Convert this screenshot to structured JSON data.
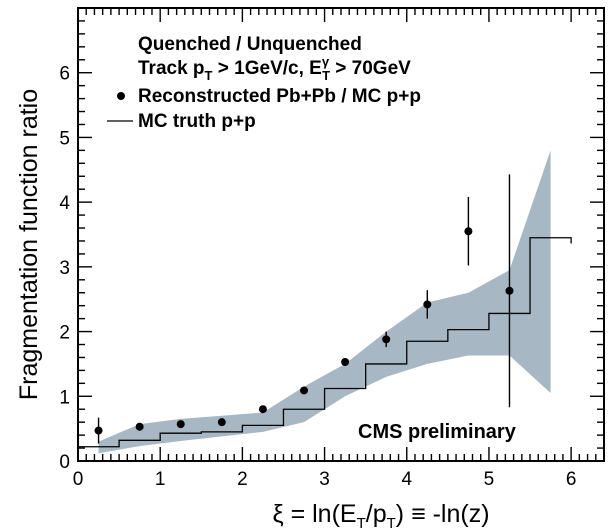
{
  "chart_data": {
    "type": "scatter",
    "title": "",
    "xlabel": "ξ = ln(E_T/p_T) ≡ -ln(z)",
    "ylabel": "Fragmentation function ratio",
    "xlim": [
      0,
      6.4
    ],
    "ylim": [
      0,
      7
    ],
    "x_ticks": [
      "0",
      "1",
      "2",
      "3",
      "4",
      "5",
      "6"
    ],
    "y_ticks": [
      "0",
      "1",
      "2",
      "3",
      "4",
      "5",
      "6"
    ],
    "legend": {
      "header1": "Quenched / Unquenched",
      "header2": "Track p_T > 1GeV/c, E^γ_T > 70GeV",
      "entries": [
        "Reconstructed Pb+Pb / MC p+p",
        "MC truth p+p"
      ]
    },
    "annotation": "CMS preliminary",
    "colors": {
      "band": "#a7b8c4",
      "markers": "#000000"
    },
    "series": [
      {
        "name": "Reconstructed Pb+Pb / MC p+p",
        "x": [
          0.25,
          0.75,
          1.25,
          1.75,
          2.25,
          2.75,
          3.25,
          3.75,
          4.25,
          4.75,
          5.25
        ],
        "y": [
          0.47,
          0.53,
          0.57,
          0.6,
          0.8,
          1.09,
          1.53,
          1.88,
          2.42,
          3.55,
          2.63
        ],
        "y_err": [
          0.2,
          0.06,
          0.05,
          0.04,
          0.05,
          0.05,
          0.06,
          0.12,
          0.22,
          0.53,
          1.8
        ]
      },
      {
        "name": "MC truth p+p",
        "x_edges": [
          0,
          0.5,
          1.0,
          1.5,
          2.0,
          2.5,
          3.0,
          3.5,
          4.0,
          4.5,
          5.0,
          5.5,
          6.0
        ],
        "y": [
          0.22,
          0.32,
          0.43,
          0.45,
          0.55,
          0.8,
          1.12,
          1.5,
          1.85,
          2.03,
          2.28,
          3.45,
          3.36
        ]
      },
      {
        "name": "systematic band",
        "x": [
          0.25,
          0.75,
          1.25,
          1.75,
          2.25,
          2.75,
          3.25,
          3.75,
          4.25,
          4.75,
          5.25,
          5.75
        ],
        "y_low": [
          0.12,
          0.23,
          0.31,
          0.38,
          0.45,
          0.6,
          1.0,
          1.3,
          1.5,
          1.63,
          1.63,
          1.05
        ],
        "y_high": [
          0.3,
          0.57,
          0.65,
          0.7,
          0.75,
          1.15,
          1.5,
          2.0,
          2.45,
          2.6,
          2.95,
          4.8
        ]
      }
    ]
  }
}
